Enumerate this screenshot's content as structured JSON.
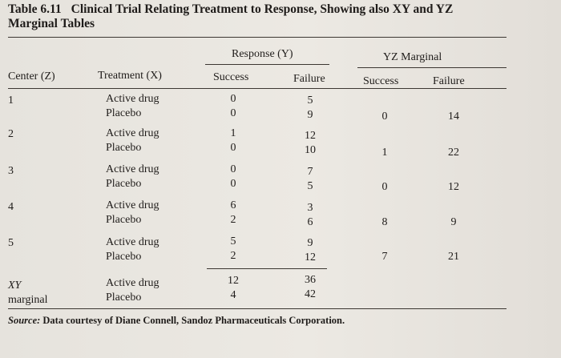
{
  "title": {
    "number": "Table 6.11",
    "line1": "Clinical Trial Relating Treatment to Response, Showing also XY and YZ",
    "line2": "Marginal Tables"
  },
  "headers": {
    "response_group": "Response (Y)",
    "yz_group": "YZ Marginal",
    "center": "Center (Z)",
    "treatment": "Treatment (X)",
    "success": "Success",
    "failure": "Failure",
    "yz_success": "Success",
    "yz_failure": "Failure"
  },
  "centers": [
    {
      "center": "1",
      "rows": [
        {
          "treatment": "Active drug",
          "success": "0",
          "failure": "5"
        },
        {
          "treatment": "Placebo",
          "success": "0",
          "failure": "9"
        }
      ],
      "yz_success": "0",
      "yz_failure": "14"
    },
    {
      "center": "2",
      "rows": [
        {
          "treatment": "Active drug",
          "success": "1",
          "failure": "12"
        },
        {
          "treatment": "Placebo",
          "success": "0",
          "failure": "10"
        }
      ],
      "yz_success": "1",
      "yz_failure": "22"
    },
    {
      "center": "3",
      "rows": [
        {
          "treatment": "Active drug",
          "success": "0",
          "failure": "7"
        },
        {
          "treatment": "Placebo",
          "success": "0",
          "failure": "5"
        }
      ],
      "yz_success": "0",
      "yz_failure": "12"
    },
    {
      "center": "4",
      "rows": [
        {
          "treatment": "Active drug",
          "success": "6",
          "failure": "3"
        },
        {
          "treatment": "Placebo",
          "success": "2",
          "failure": "6"
        }
      ],
      "yz_success": "8",
      "yz_failure": "9"
    },
    {
      "center": "5",
      "rows": [
        {
          "treatment": "Active drug",
          "success": "5",
          "failure": "9"
        },
        {
          "treatment": "Placebo",
          "success": "2",
          "failure": "12"
        }
      ],
      "yz_success": "7",
      "yz_failure": "21"
    }
  ],
  "xy_marginal": {
    "label_line1": "XY",
    "label_line2": "marginal",
    "rows": [
      {
        "treatment": "Active drug",
        "success": "12",
        "failure": "36"
      },
      {
        "treatment": "Placebo",
        "success": "4",
        "failure": "42"
      }
    ]
  },
  "source": {
    "label": "Source:",
    "text": "Data courtesy of Diane Connell, Sandoz Pharmaceuticals Corporation."
  }
}
